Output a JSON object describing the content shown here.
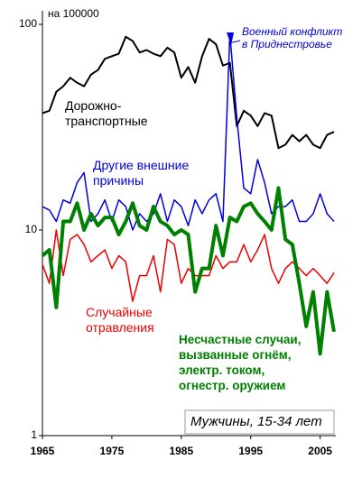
{
  "chart_data": {
    "type": "line",
    "unit_label": "на 100000",
    "caption": "Мужчины, 15-34 лет",
    "annotation": "Военный конфликт\nв Приднестровье",
    "log_y": true,
    "xlim": [
      1965,
      2007
    ],
    "ylim": [
      1,
      100
    ],
    "yticks": [
      1,
      10,
      100
    ],
    "xticks": [
      1965,
      1975,
      1985,
      1995,
      2005
    ],
    "x": [
      1965,
      1966,
      1967,
      1968,
      1969,
      1970,
      1971,
      1972,
      1973,
      1974,
      1975,
      1976,
      1977,
      1978,
      1979,
      1980,
      1981,
      1982,
      1983,
      1984,
      1985,
      1986,
      1987,
      1988,
      1989,
      1990,
      1991,
      1992,
      1993,
      1994,
      1995,
      1996,
      1997,
      1998,
      1999,
      2000,
      2001,
      2002,
      2003,
      2004,
      2005,
      2006,
      2007
    ],
    "series": [
      {
        "name": "Дорожно-\nтранспортные",
        "color": "#000000",
        "values": [
          37,
          38,
          47,
          50,
          55,
          52,
          50,
          57,
          60,
          68,
          70,
          72,
          87,
          83,
          73,
          75,
          72,
          70,
          77,
          73,
          55,
          62,
          52,
          70,
          85,
          80,
          63,
          65,
          32,
          38,
          36,
          32,
          37,
          36,
          25,
          26,
          29,
          27,
          29,
          26,
          25,
          29,
          30
        ]
      },
      {
        "name": "Другие внешние\nпричины",
        "color": "#0000dd",
        "values": [
          13,
          12.5,
          11,
          14,
          13.5,
          17,
          19,
          11,
          12,
          14,
          11,
          14,
          13,
          10,
          12,
          11,
          12,
          15,
          11,
          14,
          13,
          10.5,
          14,
          12,
          14,
          15,
          11,
          90,
          35,
          16,
          15,
          22,
          17,
          12,
          13,
          13,
          14,
          11,
          11,
          12,
          15,
          12,
          11
        ]
      },
      {
        "name": "Случайные\nотравления",
        "color": "#ee0000",
        "values": [
          6.8,
          5.5,
          10,
          6,
          9,
          9.5,
          8.5,
          7,
          7.5,
          8,
          6.5,
          7.5,
          7,
          4.5,
          6,
          6,
          7.5,
          5,
          9,
          8.5,
          5.5,
          6.5,
          6,
          6,
          6,
          7.5,
          6.5,
          7,
          7,
          8.5,
          7,
          8,
          9.5,
          6.5,
          5.5,
          6.5,
          7,
          6.5,
          6,
          6.5,
          6,
          5.5,
          6.2
        ]
      },
      {
        "name": "Несчастные случаи,\nвызванные огнём,\nэлектр. током,\nогнестр. оружием",
        "color": "#008000",
        "values": [
          7.5,
          8,
          4.2,
          11,
          11,
          13.5,
          10,
          12,
          10.5,
          11.5,
          11.5,
          9.5,
          11,
          13.5,
          10.5,
          10,
          13,
          11,
          10.5,
          9.5,
          10,
          9.5,
          5,
          6.5,
          6.5,
          10.5,
          7.5,
          11.5,
          11,
          13,
          13.5,
          12,
          11,
          10,
          16,
          9,
          8.5,
          5.5,
          3.4,
          5,
          2.5,
          5,
          3.2
        ]
      }
    ]
  }
}
